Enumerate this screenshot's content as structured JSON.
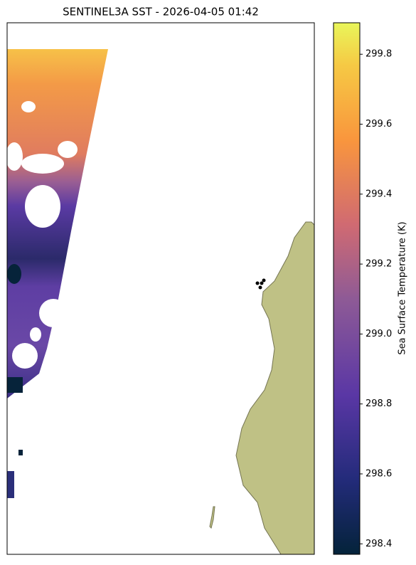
{
  "chart_data": {
    "type": "map",
    "title": "SENTINEL3A SST - 2026-04-05 01:42",
    "colorbar": {
      "label": "Sea Surface Temperature (K)",
      "lim": [
        298.37,
        299.89
      ],
      "ticks": [
        298.4,
        298.6,
        298.8,
        {
          "value": 299,
          "label": "299.0"
        },
        299.2,
        299.4,
        299.6,
        299.8
      ]
    }
  }
}
